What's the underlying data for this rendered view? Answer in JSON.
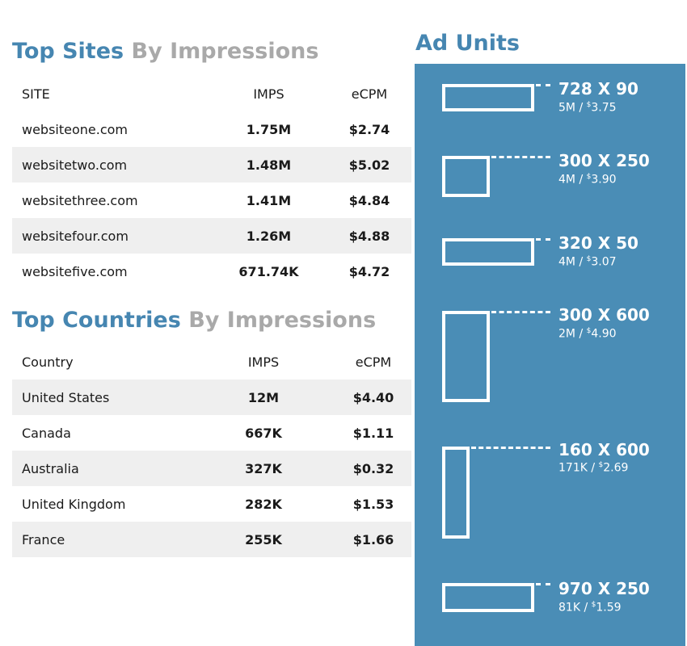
{
  "top_sites": {
    "title_main": "Top Sites",
    "title_sub": "By Impressions",
    "headers": {
      "name": "SITE",
      "imps": "IMPS",
      "ecpm": "eCPM"
    },
    "rows": [
      {
        "name": "websiteone.com",
        "imps": "1.75M",
        "ecpm": "$2.74"
      },
      {
        "name": "websitetwo.com",
        "imps": "1.48M",
        "ecpm": "$5.02"
      },
      {
        "name": "websitethree.com",
        "imps": "1.41M",
        "ecpm": "$4.84"
      },
      {
        "name": "websitefour.com",
        "imps": "1.26M",
        "ecpm": "$4.88"
      },
      {
        "name": "websitefive.com",
        "imps": "671.74K",
        "ecpm": "$4.72"
      }
    ]
  },
  "top_countries": {
    "title_main": "Top Countries",
    "title_sub": "By Impressions",
    "headers": {
      "name": "Country",
      "imps": "IMPS",
      "ecpm": "eCPM"
    },
    "rows": [
      {
        "name": "United States",
        "imps": "12M",
        "ecpm": "$4.40"
      },
      {
        "name": "Canada",
        "imps": "667K",
        "ecpm": "$1.11"
      },
      {
        "name": "Australia",
        "imps": "327K",
        "ecpm": "$0.32"
      },
      {
        "name": "United Kingdom",
        "imps": "282K",
        "ecpm": "$1.53"
      },
      {
        "name": "France",
        "imps": "255K",
        "ecpm": "$1.66"
      }
    ]
  },
  "ad_units": {
    "title": "Ad Units",
    "currency_symbol": "$",
    "units": [
      {
        "size": "728 X 90",
        "imps": "5M",
        "ecpm": "3.75"
      },
      {
        "size": "300 X 250",
        "imps": "4M",
        "ecpm": "3.90"
      },
      {
        "size": "320 X 50",
        "imps": "4M",
        "ecpm": "3.07"
      },
      {
        "size": "300 X 600",
        "imps": "2M",
        "ecpm": "4.90"
      },
      {
        "size": "160 X 600",
        "imps": "171K",
        "ecpm": "2.69"
      },
      {
        "size": "970 X 250",
        "imps": "81K",
        "ecpm": "1.59"
      }
    ]
  },
  "colors": {
    "accent": "#4686b1",
    "muted_title": "#a9a9a9",
    "panel": "#4a8db6",
    "stripe": "#efefef"
  }
}
